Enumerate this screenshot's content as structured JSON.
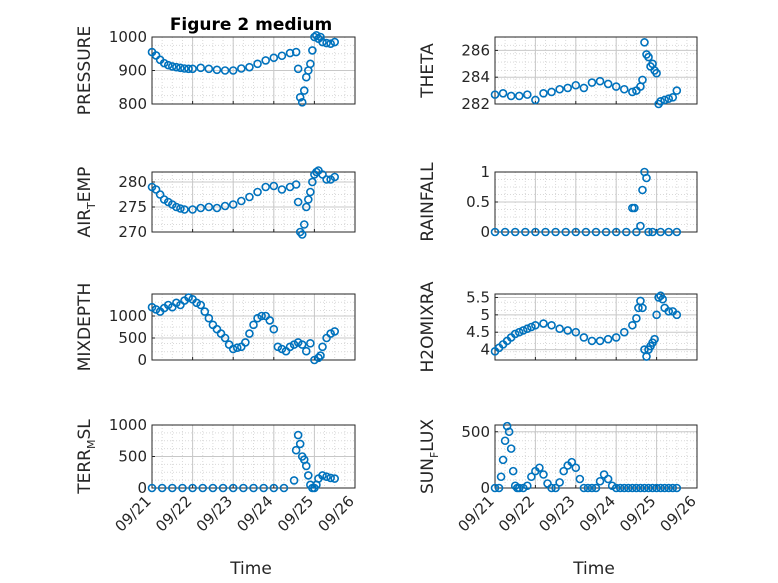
{
  "figure": {
    "title": "Figure 2 medium",
    "x_label": "Time",
    "x_ticks": [
      "09/21",
      "09/22",
      "09/23",
      "09/24",
      "09/25",
      "09/26"
    ]
  },
  "chart_data": [
    {
      "type": "scatter",
      "name": "PRESSURE",
      "ylabel_main": "PRESSURE",
      "ylabel_sub": "",
      "ylabel_tail": "",
      "ylim": [
        800,
        1000
      ],
      "yticks": [
        800,
        900,
        1000
      ],
      "ytick_labels": [
        "800",
        "900",
        "1000"
      ],
      "xlim": [
        0,
        5
      ],
      "x": [
        0.0,
        0.1,
        0.2,
        0.3,
        0.4,
        0.5,
        0.6,
        0.7,
        0.8,
        0.9,
        1.0,
        1.2,
        1.4,
        1.6,
        1.8,
        2.0,
        2.2,
        2.4,
        2.6,
        2.8,
        3.0,
        3.2,
        3.4,
        3.55,
        3.6,
        3.65,
        3.7,
        3.75,
        3.8,
        3.85,
        3.9,
        3.95,
        4.0,
        4.05,
        4.1,
        4.15,
        4.2,
        4.3,
        4.4,
        4.5
      ],
      "y": [
        955,
        945,
        932,
        922,
        916,
        912,
        910,
        908,
        906,
        905,
        905,
        908,
        905,
        902,
        900,
        900,
        906,
        910,
        920,
        930,
        938,
        944,
        952,
        955,
        905,
        820,
        805,
        840,
        880,
        900,
        920,
        960,
        1000,
        1005,
        995,
        1000,
        985,
        982,
        980,
        985
      ],
      "color": "#0072BD"
    },
    {
      "type": "scatter",
      "name": "THETA",
      "ylabel_main": "THETA",
      "ylabel_sub": "",
      "ylabel_tail": "",
      "ylim": [
        282,
        287
      ],
      "yticks": [
        282,
        284,
        286
      ],
      "ytick_labels": [
        "282",
        "284",
        "286"
      ],
      "xlim": [
        0,
        5
      ],
      "x": [
        0.0,
        0.2,
        0.4,
        0.6,
        0.8,
        1.0,
        1.2,
        1.4,
        1.6,
        1.8,
        2.0,
        2.2,
        2.4,
        2.6,
        2.8,
        3.0,
        3.2,
        3.4,
        3.5,
        3.6,
        3.65,
        3.7,
        3.75,
        3.8,
        3.85,
        3.9,
        3.95,
        4.0,
        4.05,
        4.1,
        4.2,
        4.3,
        4.4,
        4.5
      ],
      "y": [
        282.7,
        282.8,
        282.6,
        282.6,
        282.7,
        282.3,
        282.8,
        282.9,
        283.1,
        283.2,
        283.4,
        283.2,
        283.6,
        283.7,
        283.5,
        283.3,
        283.1,
        282.9,
        283.0,
        283.3,
        283.8,
        286.6,
        285.7,
        285.5,
        284.8,
        285.0,
        284.5,
        284.3,
        282.0,
        282.2,
        282.3,
        282.4,
        282.5,
        283.0
      ],
      "color": "#0072BD"
    },
    {
      "type": "scatter",
      "name": "AIR_TEMP",
      "ylabel_main": "AIR",
      "ylabel_sub": "T",
      "ylabel_tail": "EMP",
      "ylim": [
        270,
        282
      ],
      "yticks": [
        270,
        275,
        280
      ],
      "ytick_labels": [
        "270",
        "275",
        "280"
      ],
      "xlim": [
        0,
        5
      ],
      "x": [
        0.0,
        0.1,
        0.2,
        0.3,
        0.4,
        0.5,
        0.6,
        0.7,
        0.8,
        1.0,
        1.2,
        1.4,
        1.6,
        1.8,
        2.0,
        2.2,
        2.4,
        2.6,
        2.8,
        3.0,
        3.2,
        3.4,
        3.55,
        3.6,
        3.65,
        3.7,
        3.75,
        3.8,
        3.85,
        3.9,
        3.95,
        4.0,
        4.05,
        4.1,
        4.2,
        4.3,
        4.4,
        4.5
      ],
      "y": [
        279,
        278.5,
        277.5,
        276.5,
        276,
        275.5,
        275,
        274.7,
        274.5,
        274.5,
        274.8,
        275,
        274.8,
        275.2,
        275.5,
        276.2,
        277,
        278,
        279,
        279.2,
        278.5,
        279,
        279.5,
        276,
        270,
        269.5,
        271.5,
        275,
        276.5,
        278,
        280,
        281.5,
        282,
        282.3,
        281.5,
        280.5,
        280.5,
        281
      ],
      "color": "#0072BD"
    },
    {
      "type": "scatter",
      "name": "RAINFALL",
      "ylabel_main": "RAINFALL",
      "ylabel_sub": "",
      "ylabel_tail": "",
      "ylim": [
        0,
        1
      ],
      "yticks": [
        0,
        0.5,
        1
      ],
      "ytick_labels": [
        "0",
        "0.5",
        "1"
      ],
      "xlim": [
        0,
        5
      ],
      "x": [
        0.0,
        0.25,
        0.5,
        0.75,
        1.0,
        1.25,
        1.5,
        1.75,
        2.0,
        2.25,
        2.5,
        2.75,
        3.0,
        3.25,
        3.4,
        3.45,
        3.5,
        3.6,
        3.65,
        3.7,
        3.75,
        3.8,
        3.9,
        4.1,
        4.3,
        4.5
      ],
      "y": [
        0,
        0,
        0,
        0,
        0,
        0,
        0,
        0,
        0,
        0,
        0,
        0,
        0,
        0,
        0.4,
        0.4,
        0,
        0.1,
        0.7,
        1.0,
        0.9,
        0,
        0,
        0,
        0,
        0
      ],
      "color": "#0072BD"
    },
    {
      "type": "scatter",
      "name": "MIXDEPTH",
      "ylabel_main": "MIXDEPTH",
      "ylabel_sub": "",
      "ylabel_tail": "",
      "ylim": [
        0,
        1500
      ],
      "yticks": [
        0,
        500,
        1000
      ],
      "ytick_labels": [
        "0",
        "500",
        "1000"
      ],
      "xlim": [
        0,
        5
      ],
      "x": [
        0.0,
        0.1,
        0.2,
        0.3,
        0.4,
        0.5,
        0.6,
        0.7,
        0.8,
        0.9,
        1.0,
        1.1,
        1.2,
        1.3,
        1.4,
        1.5,
        1.6,
        1.7,
        1.8,
        1.9,
        2.0,
        2.1,
        2.2,
        2.3,
        2.4,
        2.5,
        2.6,
        2.7,
        2.8,
        2.9,
        3.0,
        3.1,
        3.2,
        3.3,
        3.4,
        3.5,
        3.6,
        3.7,
        3.8,
        3.9,
        4.0,
        4.1,
        4.15,
        4.2,
        4.3,
        4.4,
        4.5
      ],
      "y": [
        1200,
        1150,
        1100,
        1180,
        1250,
        1200,
        1300,
        1250,
        1350,
        1420,
        1380,
        1300,
        1250,
        1100,
        950,
        800,
        700,
        600,
        500,
        350,
        250,
        280,
        300,
        400,
        600,
        800,
        950,
        1000,
        1000,
        900,
        700,
        300,
        250,
        200,
        300,
        350,
        400,
        350,
        200,
        380,
        0,
        50,
        100,
        300,
        500,
        600,
        650
      ],
      "color": "#0072BD"
    },
    {
      "type": "scatter",
      "name": "H2OMIXRA",
      "ylabel_main": "H2OMIXRA",
      "ylabel_sub": "",
      "ylabel_tail": "",
      "ylim": [
        3.7,
        5.6
      ],
      "yticks": [
        4,
        4.5,
        5,
        5.5
      ],
      "ytick_labels": [
        "4",
        "4.5",
        "5",
        "5.5"
      ],
      "xlim": [
        0,
        5
      ],
      "x": [
        0.0,
        0.1,
        0.2,
        0.3,
        0.4,
        0.5,
        0.6,
        0.7,
        0.8,
        0.9,
        1.0,
        1.2,
        1.4,
        1.6,
        1.8,
        2.0,
        2.2,
        2.4,
        2.6,
        2.8,
        3.0,
        3.2,
        3.4,
        3.5,
        3.55,
        3.6,
        3.65,
        3.7,
        3.75,
        3.8,
        3.85,
        3.9,
        3.95,
        4.0,
        4.05,
        4.1,
        4.15,
        4.2,
        4.3,
        4.4,
        4.5
      ],
      "y": [
        3.95,
        4.05,
        4.15,
        4.25,
        4.35,
        4.45,
        4.5,
        4.55,
        4.6,
        4.65,
        4.7,
        4.75,
        4.7,
        4.6,
        4.55,
        4.5,
        4.35,
        4.25,
        4.25,
        4.3,
        4.35,
        4.5,
        4.7,
        4.9,
        5.2,
        5.4,
        5.2,
        4.0,
        3.8,
        4.0,
        4.1,
        4.2,
        4.3,
        5.0,
        5.5,
        5.55,
        5.45,
        5.2,
        5.1,
        5.1,
        5.0
      ],
      "color": "#0072BD"
    },
    {
      "type": "scatter",
      "name": "TERR_MSL",
      "ylabel_main": "TERR",
      "ylabel_sub": "M",
      "ylabel_tail": "SL",
      "ylim": [
        0,
        1000
      ],
      "yticks": [
        0,
        500,
        1000
      ],
      "ytick_labels": [
        "0",
        "500",
        "1000"
      ],
      "xlim": [
        0,
        5
      ],
      "x": [
        0.0,
        0.25,
        0.5,
        0.75,
        1.0,
        1.25,
        1.5,
        1.75,
        2.0,
        2.25,
        2.5,
        2.75,
        3.0,
        3.25,
        3.5,
        3.55,
        3.6,
        3.65,
        3.7,
        3.75,
        3.8,
        3.85,
        3.9,
        3.95,
        4.0,
        4.05,
        4.1,
        4.2,
        4.3,
        4.4,
        4.5
      ],
      "y": [
        0,
        0,
        0,
        0,
        0,
        0,
        0,
        0,
        0,
        0,
        0,
        0,
        0,
        0,
        120,
        600,
        840,
        700,
        500,
        450,
        350,
        200,
        50,
        0,
        0,
        50,
        150,
        200,
        180,
        160,
        150
      ],
      "color": "#0072BD"
    },
    {
      "type": "scatter",
      "name": "SUN_FLUX",
      "ylabel_main": "SUN",
      "ylabel_sub": "F",
      "ylabel_tail": "LUX",
      "ylim": [
        0,
        560
      ],
      "yticks": [
        0,
        500
      ],
      "ytick_labels": [
        "0",
        "500"
      ],
      "xlim": [
        0,
        5
      ],
      "x": [
        0.0,
        0.1,
        0.15,
        0.2,
        0.25,
        0.3,
        0.35,
        0.4,
        0.45,
        0.5,
        0.55,
        0.6,
        0.7,
        0.8,
        0.9,
        1.0,
        1.1,
        1.2,
        1.3,
        1.4,
        1.5,
        1.6,
        1.7,
        1.8,
        1.9,
        2.0,
        2.1,
        2.2,
        2.3,
        2.4,
        2.5,
        2.6,
        2.7,
        2.8,
        2.9,
        3.0,
        3.1,
        3.2,
        3.3,
        3.4,
        3.5,
        3.6,
        3.7,
        3.8,
        3.9,
        4.0,
        4.1,
        4.2,
        4.3,
        4.4,
        4.5
      ],
      "y": [
        0,
        0,
        100,
        250,
        420,
        550,
        500,
        350,
        150,
        20,
        0,
        0,
        0,
        20,
        100,
        150,
        180,
        120,
        40,
        0,
        0,
        50,
        150,
        200,
        230,
        180,
        80,
        0,
        0,
        0,
        0,
        60,
        120,
        80,
        20,
        0,
        0,
        0,
        0,
        0,
        0,
        0,
        0,
        0,
        0,
        0,
        0,
        0,
        0,
        0,
        0
      ],
      "color": "#0072BD"
    }
  ]
}
